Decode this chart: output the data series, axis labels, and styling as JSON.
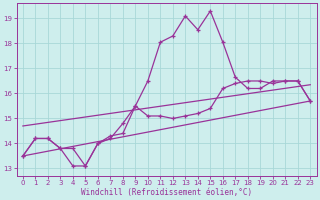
{
  "xlabel": "Windchill (Refroidissement éolien,°C)",
  "bg_color": "#ceeeed",
  "grid_color": "#a8d8d8",
  "line_color": "#993399",
  "spine_color": "#993399",
  "xlim": [
    -0.5,
    23.5
  ],
  "ylim": [
    12.7,
    19.6
  ],
  "yticks": [
    13,
    14,
    15,
    16,
    17,
    18,
    19
  ],
  "xticks": [
    0,
    1,
    2,
    3,
    4,
    5,
    6,
    7,
    8,
    9,
    10,
    11,
    12,
    13,
    14,
    15,
    16,
    17,
    18,
    19,
    20,
    21,
    22,
    23
  ],
  "smooth_line1_x": [
    0,
    23
  ],
  "smooth_line1_y": [
    13.5,
    15.7
  ],
  "smooth_line2_x": [
    0,
    23
  ],
  "smooth_line2_y": [
    14.7,
    16.35
  ],
  "jagged_x": [
    0,
    1,
    2,
    3,
    4,
    5,
    6,
    7,
    8,
    9,
    10,
    11,
    12,
    13,
    14,
    15,
    16,
    17,
    18,
    19,
    20,
    21,
    22,
    23
  ],
  "jagged_y": [
    13.5,
    14.2,
    14.2,
    13.8,
    13.8,
    13.1,
    14.0,
    14.2,
    14.8,
    15.5,
    15.1,
    15.1,
    15.0,
    15.1,
    15.2,
    15.4,
    16.2,
    16.4,
    16.5,
    16.5,
    16.4,
    16.5,
    16.5,
    15.7
  ],
  "spiky_x": [
    0,
    1,
    2,
    3,
    4,
    5,
    6,
    7,
    8,
    9,
    10,
    11,
    12,
    13,
    14,
    15,
    16,
    17,
    18,
    19,
    20,
    21,
    22,
    23
  ],
  "spiky_y": [
    13.5,
    14.2,
    14.2,
    13.8,
    13.1,
    13.1,
    14.0,
    14.3,
    14.4,
    15.5,
    16.5,
    18.05,
    18.3,
    19.1,
    18.55,
    19.3,
    18.05,
    16.65,
    16.2,
    16.2,
    16.5,
    16.5,
    16.5,
    15.7
  ],
  "lw": 0.9,
  "ms": 2.8
}
